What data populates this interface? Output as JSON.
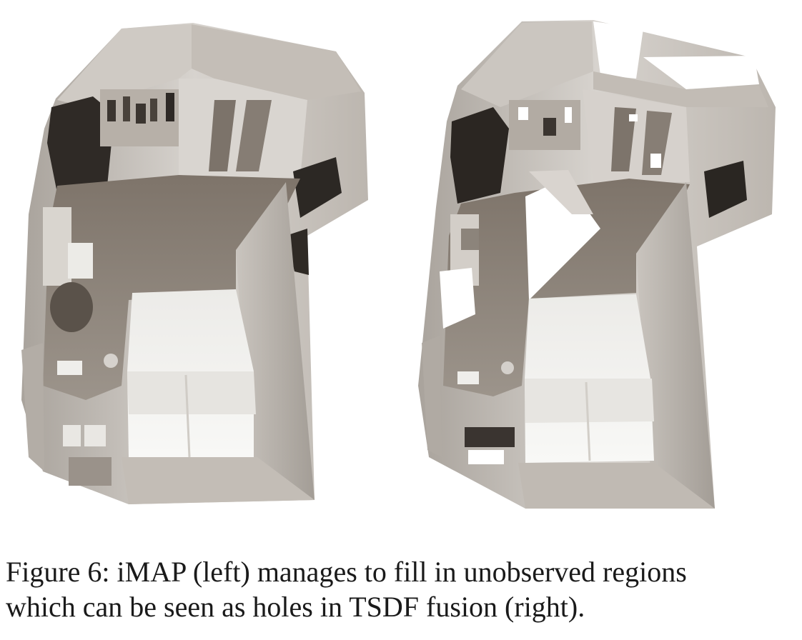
{
  "figure": {
    "caption_line1": "Figure 6: iMAP (left) manages to fill in unobserved regions",
    "caption_line2": "which can be seen as holes in TSDF fusion (right).",
    "panels": [
      {
        "id": "imap-reconstruction",
        "method": "iMAP"
      },
      {
        "id": "tsdf-fusion-reconstruction",
        "method": "TSDF fusion"
      }
    ],
    "colors": {
      "wall_light": "#d8d4cf",
      "wall_mid": "#b6b0a9",
      "floor": "#8e857b",
      "shadow": "#3d3833",
      "bed": "#f3f2ef",
      "hole": "#ffffff"
    }
  }
}
